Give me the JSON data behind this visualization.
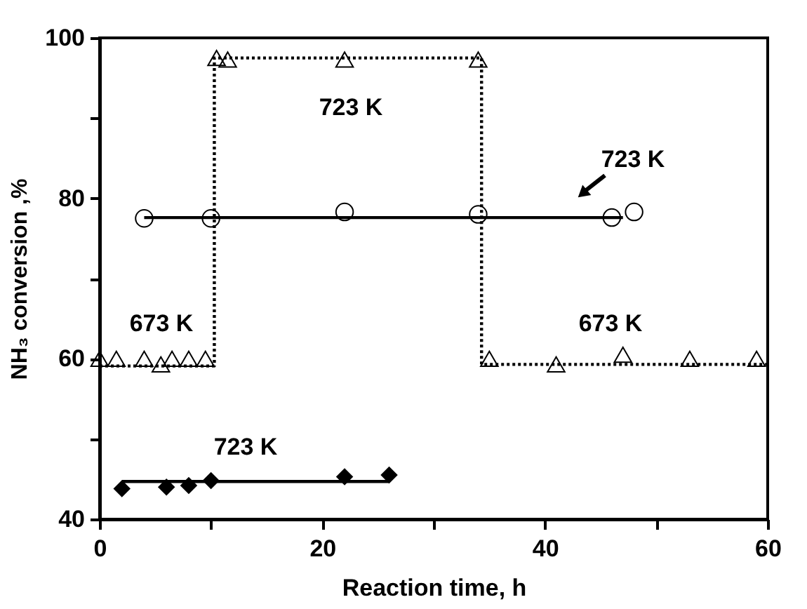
{
  "chart_data": {
    "type": "scatter",
    "xlabel": "Reaction time, h",
    "ylabel": "NH₃ conversion ,%",
    "xlim": [
      0,
      60
    ],
    "ylim": [
      40,
      100
    ],
    "xticks": [
      0,
      {
        "value": 10,
        "label": null
      },
      20,
      {
        "value": 30,
        "label": null
      },
      40,
      {
        "value": 50,
        "label": null
      },
      60
    ],
    "yticks": [
      40,
      {
        "value": 50,
        "label": null
      },
      60,
      {
        "value": 70,
        "label": null
      },
      80,
      {
        "value": 90,
        "label": null
      },
      100
    ],
    "grid": false,
    "series": [
      {
        "type": "line",
        "color": "#000000",
        "line_style": "dotted",
        "x": [
          0,
          10.3,
          10.3,
          34.3,
          34.3,
          60
        ],
        "values": [
          59.1,
          59.1,
          97.5,
          97.5,
          59.3,
          59.3
        ]
      },
      {
        "type": "line",
        "color": "#000000",
        "line_style": "solid",
        "x": [
          4,
          47
        ],
        "values": [
          77.6,
          77.6
        ]
      },
      {
        "type": "line",
        "color": "#000000",
        "line_style": "solid",
        "x": [
          2,
          26
        ],
        "values": [
          44.7,
          44.7
        ]
      },
      {
        "color": "#000000",
        "marker": "triangle",
        "x": [
          0,
          1.5,
          4,
          5.5,
          6.5,
          8,
          9.5,
          10.5,
          11.5,
          22,
          34,
          35,
          41,
          47,
          53,
          59
        ],
        "values": [
          60,
          60,
          60,
          59.3,
          60,
          60,
          60,
          97.5,
          97.3,
          97.3,
          97.3,
          60,
          59.3,
          60.5,
          60,
          60
        ]
      },
      {
        "color": "#000000",
        "marker": "circle",
        "x": [
          4,
          10,
          22,
          34,
          46,
          48
        ],
        "values": [
          77.5,
          77.5,
          78.3,
          78,
          77.6,
          78.3
        ]
      },
      {
        "color": "#000000",
        "marker": "diamond",
        "x": [
          2,
          6,
          8,
          10,
          22,
          26
        ],
        "values": [
          43.8,
          44,
          44.2,
          44.8,
          45.3,
          45.5
        ]
      }
    ],
    "annotations": [
      "723 K",
      "673 K",
      "673 K",
      "723 K",
      "723 K"
    ]
  }
}
